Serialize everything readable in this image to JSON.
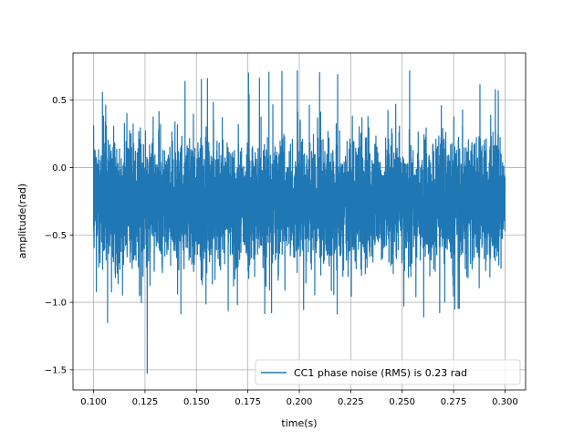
{
  "chart_data": {
    "type": "line",
    "title": "",
    "xlabel": "time(s)",
    "ylabel": "amplitude(rad)",
    "xlim": [
      0.09,
      0.31
    ],
    "ylim": [
      -1.65,
      0.85
    ],
    "x_ticks": [
      0.1,
      0.125,
      0.15,
      0.175,
      0.2,
      0.225,
      0.25,
      0.275,
      0.3
    ],
    "x_tick_labels": [
      "0.100",
      "0.125",
      "0.150",
      "0.175",
      "0.200",
      "0.225",
      "0.250",
      "0.275",
      "0.300"
    ],
    "y_ticks": [
      0.5,
      0.0,
      -0.5,
      -1.0,
      -1.5
    ],
    "y_tick_labels": [
      "0.5",
      "0.0",
      "−0.5",
      "−1.0",
      "−1.5"
    ],
    "grid": true,
    "legend_position": "lower-right",
    "series": [
      {
        "name": "CC1 phase noise (RMS) is 0.23 rad",
        "color": "#1f77b4",
        "x_range": [
          0.1,
          0.3
        ],
        "envelope_x": [
          0.1,
          0.125,
          0.15,
          0.175,
          0.2,
          0.225,
          0.25,
          0.275,
          0.3
        ],
        "envelope_max": [
          0.55,
          0.6,
          0.65,
          0.7,
          0.72,
          0.68,
          0.72,
          0.7,
          0.55
        ],
        "envelope_min": [
          -1.0,
          -1.55,
          -1.0,
          -1.1,
          -1.05,
          -1.1,
          -1.15,
          -1.05,
          -1.0
        ],
        "mean": -0.25,
        "rms": 0.23
      }
    ]
  }
}
